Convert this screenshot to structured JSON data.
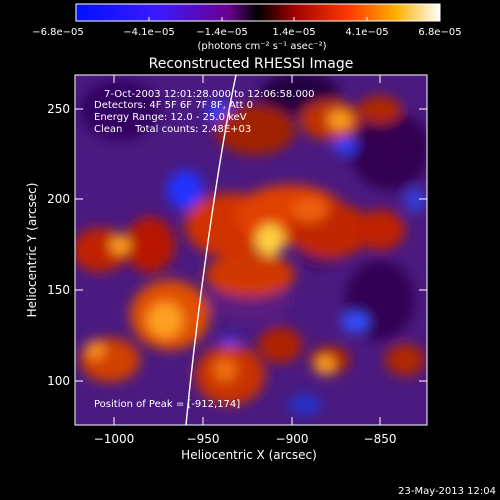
{
  "colorbar": {
    "tick_labels": [
      "−6.8e−05",
      "−4.1e−05",
      "−1.4e−05",
      "1.4e−05",
      "4.1e−05",
      "6.8e−05"
    ],
    "units": "(photons cm⁻² s⁻¹ asec⁻²)"
  },
  "title": "Reconstructed RHESSI Image",
  "annotation": {
    "time_range": "7-Oct-2003 12:01:28.000 to 12:06:58.000",
    "detectors": "Detectors: 4F 5F 6F 7F 8F, Att 0",
    "energy_range": "Energy Range: 12.0 - 25.0 keV",
    "method_counts": "Clean    Total counts: 2.48E+03",
    "peak_position": "Position of Peak = [-912,174]"
  },
  "axes": {
    "xlabel": "Heliocentric X (arcsec)",
    "ylabel": "Heliocentric Y (arcsec)",
    "x_ticks": [
      "−1000",
      "−950",
      "−900",
      "−850"
    ],
    "y_ticks": [
      "100",
      "150",
      "200",
      "250"
    ]
  },
  "footer_timestamp": "23-May-2013 12:04"
}
